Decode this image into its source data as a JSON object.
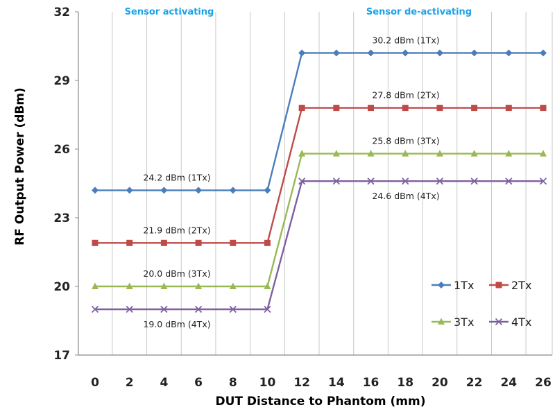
{
  "chart_data": {
    "type": "line",
    "title": "",
    "xlabel": "DUT Distance to Phantom (mm)",
    "ylabel": "RF Output Power (dBm)",
    "x": [
      0,
      2,
      4,
      6,
      8,
      10,
      12,
      14,
      16,
      18,
      20,
      22,
      24,
      26
    ],
    "xticks": [
      "0",
      "2",
      "4",
      "6",
      "8",
      "10",
      "12",
      "14",
      "16",
      "18",
      "20",
      "22",
      "24",
      "26"
    ],
    "ylim": [
      17,
      32
    ],
    "yticks": [
      "17",
      "20",
      "23",
      "26",
      "29",
      "32"
    ],
    "grid": "vertical",
    "legend_position": "bottom-right",
    "regions": [
      {
        "label": "Sensor activating"
      },
      {
        "label": "Sensor de-activating"
      }
    ],
    "series": [
      {
        "name": "1Tx",
        "color": "#4a7ebb",
        "marker": "diamond",
        "values": [
          24.2,
          24.2,
          24.2,
          24.2,
          24.2,
          24.2,
          30.2,
          30.2,
          30.2,
          30.2,
          30.2,
          30.2,
          30.2,
          30.2
        ]
      },
      {
        "name": "2Tx",
        "color": "#be4b48",
        "marker": "square",
        "values": [
          21.9,
          21.9,
          21.9,
          21.9,
          21.9,
          21.9,
          27.8,
          27.8,
          27.8,
          27.8,
          27.8,
          27.8,
          27.8,
          27.8
        ]
      },
      {
        "name": "3Tx",
        "color": "#98b954",
        "marker": "triangle",
        "values": [
          20.0,
          20.0,
          20.0,
          20.0,
          20.0,
          20.0,
          25.8,
          25.8,
          25.8,
          25.8,
          25.8,
          25.8,
          25.8,
          25.8
        ]
      },
      {
        "name": "4Tx",
        "color": "#7d60a0",
        "marker": "x",
        "values": [
          19.0,
          19.0,
          19.0,
          19.0,
          19.0,
          19.0,
          24.6,
          24.6,
          24.6,
          24.6,
          24.6,
          24.6,
          24.6,
          24.6
        ]
      }
    ],
    "annotations": [
      {
        "text": "24.2 dBm (1Tx)",
        "x": 4,
        "y": 24.2,
        "side": "above"
      },
      {
        "text": "21.9 dBm (2Tx)",
        "x": 4,
        "y": 21.9,
        "side": "above"
      },
      {
        "text": "20.0 dBm (3Tx)",
        "x": 4,
        "y": 20.0,
        "side": "above"
      },
      {
        "text": "19.0 dBm (4Tx)",
        "x": 4,
        "y": 19.0,
        "side": "below"
      },
      {
        "text": "30.2 dBm (1Tx)",
        "x": 19,
        "y": 30.2,
        "side": "above"
      },
      {
        "text": "27.8 dBm (2Tx)",
        "x": 19,
        "y": 27.8,
        "side": "above"
      },
      {
        "text": "25.8 dBm (3Tx)",
        "x": 19,
        "y": 25.8,
        "side": "above"
      },
      {
        "text": "24.6 dBm (4Tx)",
        "x": 19,
        "y": 24.6,
        "side": "below"
      }
    ]
  }
}
